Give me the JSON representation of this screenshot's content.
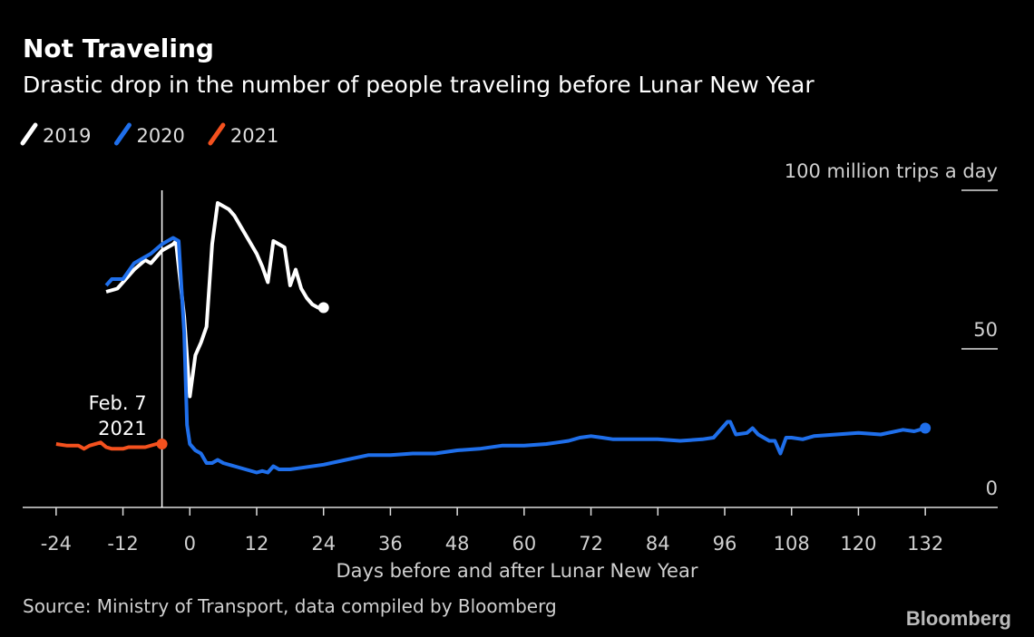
{
  "chart_data": {
    "type": "line",
    "title": "Not Traveling",
    "subtitle": "Drastic drop in the number of people traveling before Lunar New Year",
    "x_label": "Days before and after Lunar New Year",
    "source": "Source: Ministry of Transport, data compiled by Bloomberg",
    "brand": "Bloomberg",
    "annotation": {
      "lines": [
        "Feb. 7",
        "2021"
      ],
      "x": -5
    },
    "xlim": [
      -30,
      145
    ],
    "xticks": [
      -24,
      -12,
      0,
      12,
      24,
      36,
      48,
      60,
      72,
      84,
      96,
      108,
      120,
      132
    ],
    "ylim": [
      0,
      100
    ],
    "yticks": [
      0,
      50,
      {
        "value": 100,
        "label": "100 million trips a day"
      }
    ],
    "series": [
      {
        "name": "2019",
        "color": "#ffffff",
        "x": [
          -15,
          -13,
          -12,
          -10,
          -8,
          -7,
          -5,
          -3,
          -2.5,
          -1,
          0,
          1,
          2,
          3,
          4,
          5,
          6,
          7,
          8,
          10,
          12,
          13,
          14,
          15,
          16,
          17,
          18,
          19,
          20,
          21,
          22,
          23,
          24
        ],
        "values": [
          68,
          69,
          71,
          75,
          78,
          77,
          81,
          83,
          84,
          60,
          35,
          48,
          52,
          57,
          83,
          96,
          95,
          94,
          92,
          86,
          80,
          76,
          71,
          84,
          83,
          82,
          70,
          75,
          69,
          66,
          64,
          63,
          63
        ]
      },
      {
        "name": "2020",
        "color": "#1f6feb",
        "x": [
          -15,
          -14,
          -12,
          -10,
          -8,
          -7,
          -5,
          -3,
          -2,
          -1,
          -0.5,
          0,
          1,
          2,
          3,
          4,
          5,
          6,
          8,
          10,
          12,
          13,
          14,
          15,
          16,
          18,
          20,
          24,
          28,
          32,
          36,
          40,
          44,
          48,
          52,
          56,
          60,
          64,
          66,
          68,
          70,
          72,
          74,
          76,
          80,
          84,
          88,
          92,
          94,
          96.5,
          97,
          98,
          100,
          101,
          102,
          104,
          105,
          106,
          107,
          108,
          110,
          112,
          116,
          120,
          124,
          128,
          130,
          132
        ],
        "values": [
          70,
          72,
          72,
          77,
          79,
          80,
          83,
          85,
          84,
          55,
          26,
          20,
          18,
          17,
          14,
          14,
          15,
          14,
          13,
          12,
          11,
          11.5,
          11,
          13,
          12,
          12,
          12.5,
          13.5,
          15,
          16.5,
          16.5,
          17,
          17,
          18,
          18.5,
          19.5,
          19.5,
          20,
          20.5,
          21,
          22,
          22.5,
          22,
          21.5,
          21.5,
          21.5,
          21,
          21.5,
          22,
          27,
          27,
          23,
          23.5,
          25,
          23,
          21,
          21,
          17,
          22,
          22,
          21.5,
          22.5,
          23,
          23.5,
          23,
          24.5,
          24,
          25
        ]
      },
      {
        "name": "2021",
        "color": "#f4511e",
        "x": [
          -24,
          -22,
          -20,
          -19,
          -18,
          -16,
          -15,
          -14,
          -12,
          -11,
          -8,
          -6,
          -5
        ],
        "values": [
          20,
          19.5,
          19.5,
          18.5,
          19.5,
          20.5,
          19,
          18.5,
          18.5,
          19,
          19,
          20,
          20
        ]
      }
    ]
  }
}
